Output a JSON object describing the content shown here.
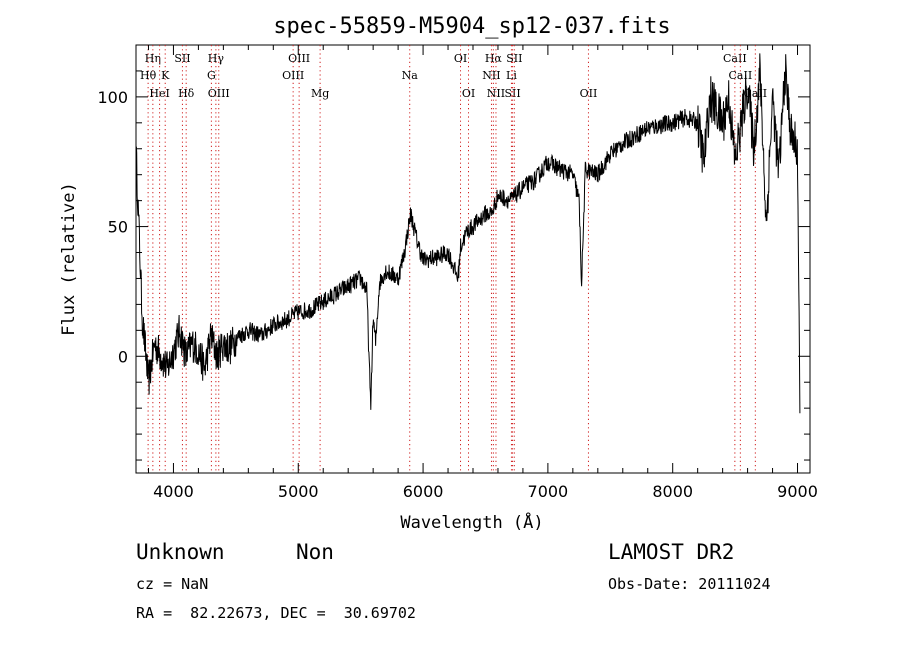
{
  "chart_data": {
    "type": "line",
    "title": "spec-55859-M5904_sp12-037.fits",
    "xlabel": "Wavelength (Å)",
    "ylabel": "Flux (relative)",
    "xlim": [
      3700,
      9100
    ],
    "ylim": [
      -45,
      120
    ],
    "x_ticks": [
      4000,
      5000,
      6000,
      7000,
      8000,
      9000
    ],
    "y_ticks": [
      0,
      50,
      100
    ],
    "grid": false,
    "series": [
      {
        "color": "#000000",
        "x": [
          3700,
          3750,
          3800,
          3850,
          3900,
          3950,
          4000,
          4050,
          4100,
          4150,
          4200,
          4250,
          4300,
          4350,
          4400,
          4450,
          4500,
          4600,
          4700,
          4800,
          4900,
          5000,
          5100,
          5200,
          5300,
          5400,
          5500,
          5550,
          5580,
          5600,
          5620,
          5650,
          5700,
          5800,
          5850,
          5900,
          5950,
          6000,
          6100,
          6200,
          6280,
          6300,
          6350,
          6400,
          6500,
          6550,
          6600,
          6700,
          6800,
          6900,
          7000,
          7100,
          7200,
          7250,
          7270,
          7300,
          7400,
          7500,
          7600,
          7700,
          7800,
          7900,
          8000,
          8100,
          8200,
          8250,
          8300,
          8350,
          8400,
          8450,
          8500,
          8550,
          8600,
          8650,
          8700,
          8750,
          8800,
          8850,
          8900,
          8950,
          9000,
          9020
        ],
        "values": [
          80,
          15,
          -10,
          5,
          0,
          -5,
          2,
          10,
          0,
          5,
          2,
          -5,
          8,
          0,
          5,
          3,
          7,
          10,
          8,
          12,
          14,
          17,
          18,
          21,
          24,
          27,
          30,
          25,
          -20,
          15,
          5,
          28,
          33,
          30,
          40,
          55,
          45,
          37,
          38,
          40,
          30,
          42,
          48,
          50,
          55,
          55,
          62,
          60,
          65,
          68,
          75,
          72,
          70,
          60,
          28,
          72,
          70,
          78,
          82,
          85,
          88,
          89,
          90,
          92,
          90,
          75,
          100,
          95,
          90,
          100,
          75,
          90,
          105,
          80,
          110,
          50,
          100,
          70,
          110,
          85,
          80,
          -30
        ]
      }
    ],
    "line_markers": [
      {
        "label": "Hη",
        "wavelength": 3835,
        "row": 0
      },
      {
        "label": "Hθ",
        "wavelength": 3797,
        "row": 1
      },
      {
        "label": "HeI",
        "wavelength": 3889,
        "row": 2
      },
      {
        "label": "K",
        "wavelength": 3934,
        "row": 1
      },
      {
        "label": "SII",
        "wavelength": 4072,
        "row": 0
      },
      {
        "label": "Hδ",
        "wavelength": 4102,
        "row": 2
      },
      {
        "label": "Hγ",
        "wavelength": 4340,
        "row": 0
      },
      {
        "label": "G",
        "wavelength": 4304,
        "row": 1
      },
      {
        "label": "OIII",
        "wavelength": 4363,
        "row": 2
      },
      {
        "label": "OIII",
        "wavelength": 4959,
        "row": 1
      },
      {
        "label": "OIII",
        "wavelength": 5007,
        "row": 0
      },
      {
        "label": "Mg",
        "wavelength": 5175,
        "row": 2
      },
      {
        "label": "Na",
        "wavelength": 5893,
        "row": 1
      },
      {
        "label": "OI",
        "wavelength": 6300,
        "row": 0
      },
      {
        "label": "OI",
        "wavelength": 6364,
        "row": 2
      },
      {
        "label": "Hα",
        "wavelength": 6563,
        "row": 0
      },
      {
        "label": "NII",
        "wavelength": 6548,
        "row": 1
      },
      {
        "label": "NII",
        "wavelength": 6584,
        "row": 2
      },
      {
        "label": "SII",
        "wavelength": 6717,
        "row": 2
      },
      {
        "label": "Li",
        "wavelength": 6708,
        "row": 1
      },
      {
        "label": "SII",
        "wavelength": 6731,
        "row": 0
      },
      {
        "label": "OII",
        "wavelength": 7325,
        "row": 2
      },
      {
        "label": "CaII",
        "wavelength": 8498,
        "row": 0
      },
      {
        "label": "CaII",
        "wavelength": 8542,
        "row": 1
      },
      {
        "label": "CaII",
        "wavelength": 8662,
        "row": 2
      }
    ]
  },
  "info": {
    "class_label": "Unknown",
    "subclass_label": "Non",
    "survey_label": "LAMOST DR2",
    "cz_text": "cz = NaN",
    "obs_date_text": "Obs-Date: 20111024",
    "radec_text": "RA =  82.22673, DEC =  30.69702"
  }
}
